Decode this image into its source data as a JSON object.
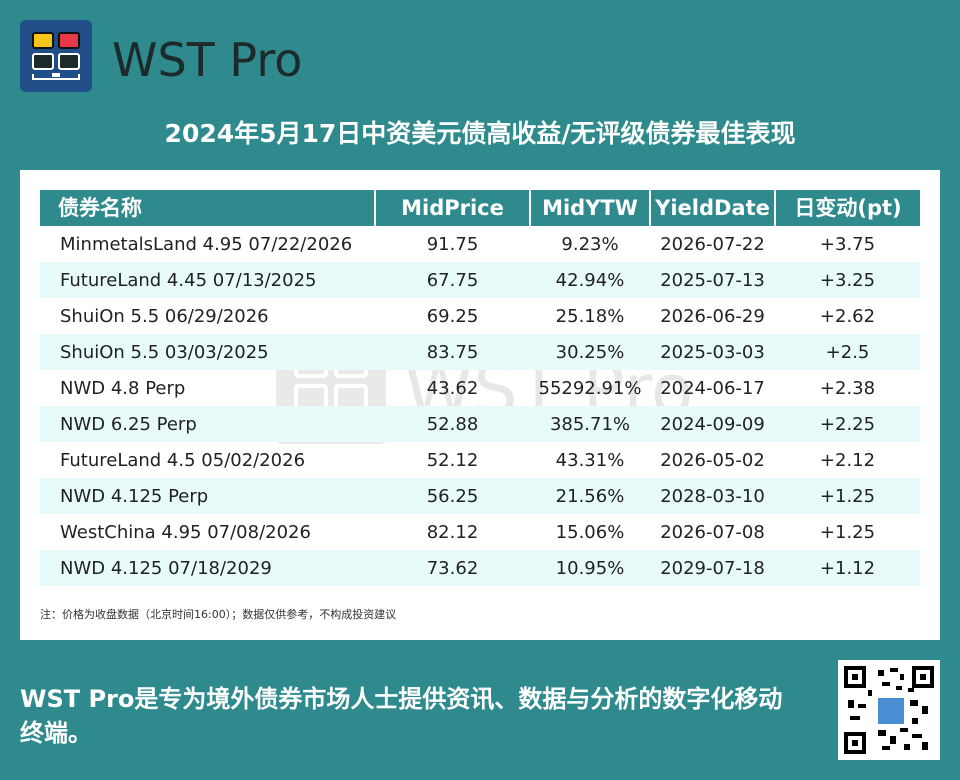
{
  "brand": {
    "name": "WST Pro",
    "logo_colors": [
      "#f5c518",
      "#e63946",
      "#1d2a2a",
      "#1d2a2a"
    ]
  },
  "title": "2024年5月17日中资美元债高收益/无评级债券最佳表现",
  "table": {
    "headers": [
      "债券名称",
      "MidPrice",
      "MidYTW",
      "YieldDate",
      "日变动(pt)"
    ],
    "rows": [
      [
        "MinmetalsLand 4.95 07/22/2026",
        "91.75",
        "9.23%",
        "2026-07-22",
        "+3.75"
      ],
      [
        "FutureLand 4.45 07/13/2025",
        "67.75",
        "42.94%",
        "2025-07-13",
        "+3.25"
      ],
      [
        "ShuiOn 5.5 06/29/2026",
        "69.25",
        "25.18%",
        "2026-06-29",
        "+2.62"
      ],
      [
        "ShuiOn 5.5 03/03/2025",
        "83.75",
        "30.25%",
        "2025-03-03",
        "+2.5"
      ],
      [
        "NWD 4.8 Perp",
        "43.62",
        "55292.91%",
        "2024-06-17",
        "+2.38"
      ],
      [
        "NWD 6.25 Perp",
        "52.88",
        "385.71%",
        "2024-09-09",
        "+2.25"
      ],
      [
        "FutureLand 4.5 05/02/2026",
        "52.12",
        "43.31%",
        "2026-05-02",
        "+2.12"
      ],
      [
        "NWD 4.125 Perp",
        "56.25",
        "21.56%",
        "2028-03-10",
        "+1.25"
      ],
      [
        "WestChina 4.95 07/08/2026",
        "82.12",
        "15.06%",
        "2026-07-08",
        "+1.25"
      ],
      [
        "NWD 4.125 07/18/2029",
        "73.62",
        "10.95%",
        "2029-07-18",
        "+1.12"
      ]
    ]
  },
  "note": "注：价格为收盘数据（北京时间16:00）；数据仅供参考，不构成投资建议",
  "watermark": "WST Pro",
  "footer": "WST Pro是专为境外债券市场人士提供资讯、数据与分析的数字化移动终端。",
  "qr_icon": "qr-code-icon"
}
